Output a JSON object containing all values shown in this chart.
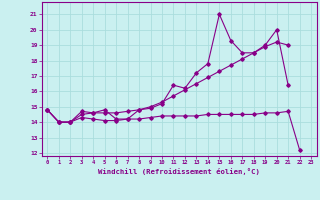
{
  "xlabel": "Windchill (Refroidissement éolien,°C)",
  "background_color": "#caf0f0",
  "line_color": "#880088",
  "grid_color": "#aadddd",
  "xlim": [
    -0.5,
    23.5
  ],
  "ylim": [
    11.8,
    21.8
  ],
  "xticks": [
    0,
    1,
    2,
    3,
    4,
    5,
    6,
    7,
    8,
    9,
    10,
    11,
    12,
    13,
    14,
    15,
    16,
    17,
    18,
    19,
    20,
    21,
    22,
    23
  ],
  "yticks": [
    12,
    13,
    14,
    15,
    16,
    17,
    18,
    19,
    20,
    21
  ],
  "series1_x": [
    0,
    1,
    2,
    3,
    4,
    5,
    6,
    7,
    8,
    9,
    10,
    11,
    12,
    13,
    14,
    15,
    16,
    17,
    18,
    19,
    20,
    21
  ],
  "series1_y": [
    14.8,
    14.0,
    14.0,
    14.7,
    14.6,
    14.8,
    14.2,
    14.2,
    14.8,
    14.9,
    15.2,
    16.4,
    16.2,
    17.2,
    17.8,
    21.0,
    19.3,
    18.5,
    18.5,
    19.0,
    20.0,
    16.4
  ],
  "series2_x": [
    0,
    1,
    2,
    3,
    4,
    5,
    6,
    7,
    8,
    9,
    10,
    11,
    12,
    13,
    14,
    15,
    16,
    17,
    18,
    19,
    20,
    21
  ],
  "series2_y": [
    14.8,
    14.0,
    14.0,
    14.5,
    14.6,
    14.6,
    14.6,
    14.7,
    14.8,
    15.0,
    15.3,
    15.7,
    16.1,
    16.5,
    16.9,
    17.3,
    17.7,
    18.1,
    18.5,
    18.9,
    19.2,
    19.0
  ],
  "series3_x": [
    0,
    1,
    2,
    3,
    4,
    5,
    6,
    7,
    8,
    9,
    10,
    11,
    12,
    13,
    14,
    15,
    16,
    17,
    18,
    19,
    20,
    21,
    22
  ],
  "series3_y": [
    14.8,
    14.0,
    14.0,
    14.3,
    14.2,
    14.1,
    14.1,
    14.2,
    14.2,
    14.3,
    14.4,
    14.4,
    14.4,
    14.4,
    14.5,
    14.5,
    14.5,
    14.5,
    14.5,
    14.6,
    14.6,
    14.7,
    12.2
  ]
}
